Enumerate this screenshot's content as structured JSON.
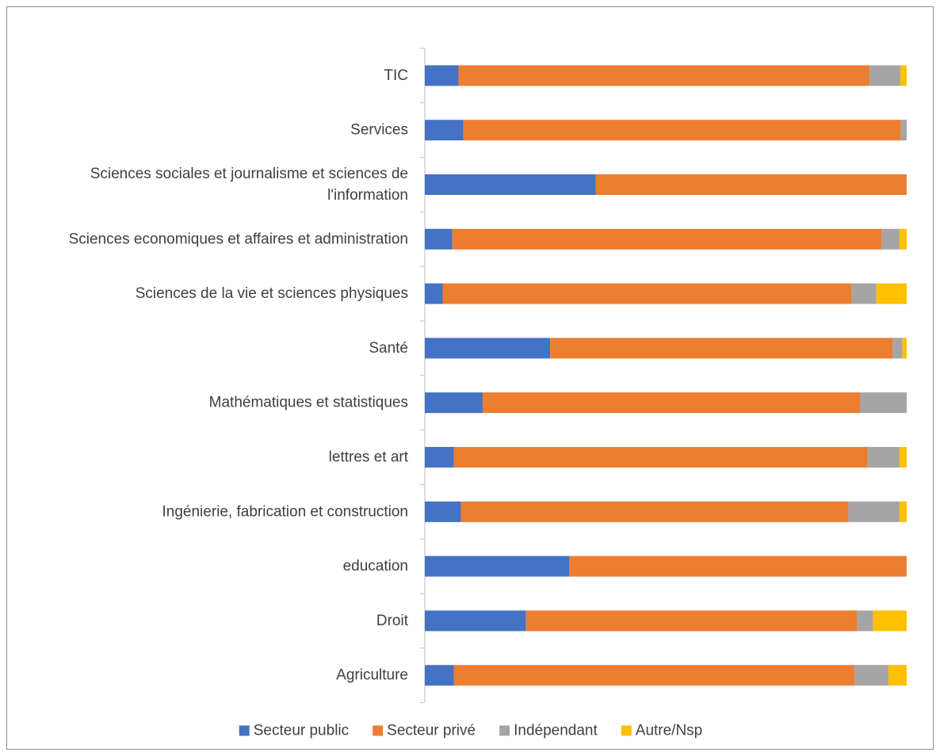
{
  "chart_data": {
    "type": "bar",
    "orientation": "horizontal",
    "stacked": "100%",
    "categories": [
      "TIC",
      "Services",
      "Sciences sociales et journalisme et sciences de l'information",
      "Sciences economiques et affaires et administration",
      "Sciences de la vie et sciences physiques",
      "Santé",
      "Mathématiques et statistiques",
      "lettres et art",
      "Ingénierie, fabrication et construction",
      "education",
      "Droit",
      "Agriculture"
    ],
    "category_label_lines": [
      [
        "TIC"
      ],
      [
        "Services"
      ],
      [
        "Sciences sociales et journalisme et sciences de",
        "l'information"
      ],
      [
        "Sciences economiques et affaires et administration"
      ],
      [
        "Sciences de la vie et sciences physiques"
      ],
      [
        "Santé"
      ],
      [
        "Mathématiques et statistiques"
      ],
      [
        "lettres et art"
      ],
      [
        "Ingénierie, fabrication et construction"
      ],
      [
        "education"
      ],
      [
        "Droit"
      ],
      [
        "Agriculture"
      ]
    ],
    "series": [
      {
        "name": "Secteur public",
        "color": "#4472C4",
        "values": [
          7,
          8,
          35.5,
          5.7,
          3.7,
          26,
          12,
          6,
          7.5,
          30,
          21,
          6
        ]
      },
      {
        "name": "Secteur privé",
        "color": "#ED7D31",
        "values": [
          85.3,
          90.8,
          64.5,
          89.1,
          84.9,
          71.1,
          78.3,
          85.9,
          80.4,
          70,
          68.7,
          83.2
        ]
      },
      {
        "name": "Indépendant",
        "color": "#A5A5A5",
        "values": [
          6.4,
          1.2,
          0,
          3.7,
          5.1,
          2,
          9.7,
          6.6,
          10.6,
          0,
          3.3,
          7
        ]
      },
      {
        "name": "Autre/Nsp",
        "color": "#FFC000",
        "values": [
          1.3,
          0,
          0,
          1.5,
          6.3,
          0.9,
          0,
          1.5,
          1.5,
          0,
          7,
          3.8
        ]
      }
    ],
    "xlim": [
      0,
      100
    ],
    "legend_position": "bottom",
    "grid": false
  }
}
